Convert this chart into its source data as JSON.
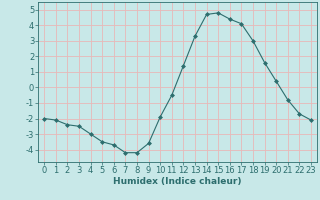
{
  "x": [
    0,
    1,
    2,
    3,
    4,
    5,
    6,
    7,
    8,
    9,
    10,
    11,
    12,
    13,
    14,
    15,
    16,
    17,
    18,
    19,
    20,
    21,
    22,
    23
  ],
  "y": [
    -2.0,
    -2.1,
    -2.4,
    -2.5,
    -3.0,
    -3.5,
    -3.7,
    -4.2,
    -4.2,
    -3.6,
    -1.9,
    -0.5,
    1.4,
    3.3,
    4.7,
    4.8,
    4.4,
    4.1,
    3.0,
    1.6,
    0.4,
    -0.8,
    -1.7,
    -2.1
  ],
  "line_color": "#2d6e6e",
  "marker": "D",
  "marker_size": 2.0,
  "bg_color": "#c8e8e8",
  "grid_color": "#e8b8b8",
  "title": "",
  "xlabel": "Humidex (Indice chaleur)",
  "ylabel": "",
  "xlim": [
    -0.5,
    23.5
  ],
  "ylim": [
    -4.8,
    5.5
  ],
  "yticks": [
    -4,
    -3,
    -2,
    -1,
    0,
    1,
    2,
    3,
    4,
    5
  ],
  "xticks": [
    0,
    1,
    2,
    3,
    4,
    5,
    6,
    7,
    8,
    9,
    10,
    11,
    12,
    13,
    14,
    15,
    16,
    17,
    18,
    19,
    20,
    21,
    22,
    23
  ],
  "xlabel_fontsize": 6.5,
  "tick_fontsize": 6.0,
  "tick_color": "#2d6e6e",
  "axis_color": "#2d6e6e",
  "linewidth": 0.8
}
